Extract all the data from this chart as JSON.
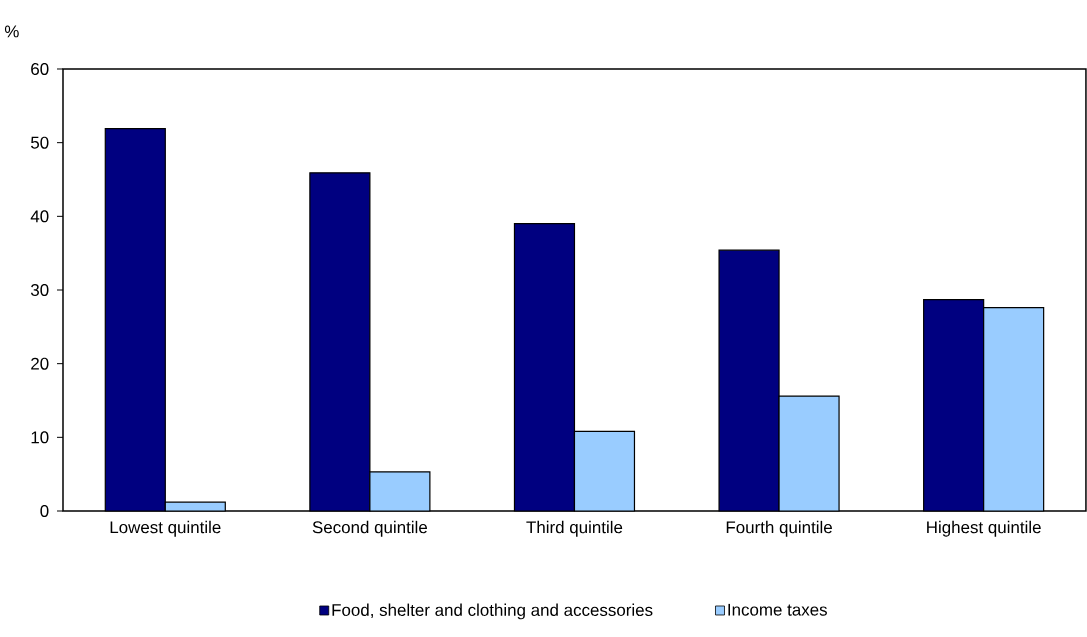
{
  "chart_data": {
    "type": "bar",
    "ylabel": "%",
    "categories": [
      "Lowest quintile",
      "Second quintile",
      "Third quintile",
      "Fourth quintile",
      "Highest quintile"
    ],
    "series": [
      {
        "name": "Food, shelter and clothing and accessories",
        "color": "#000080",
        "values": [
          51.9,
          45.9,
          39.0,
          35.4,
          28.7
        ]
      },
      {
        "name": "Income taxes",
        "color": "#99ccff",
        "values": [
          1.2,
          5.3,
          10.8,
          15.6,
          27.6
        ]
      }
    ],
    "ylim": [
      0,
      60
    ],
    "yticks": [
      0,
      10,
      20,
      30,
      40,
      50,
      60
    ],
    "grid": false,
    "legend": "bottom"
  }
}
